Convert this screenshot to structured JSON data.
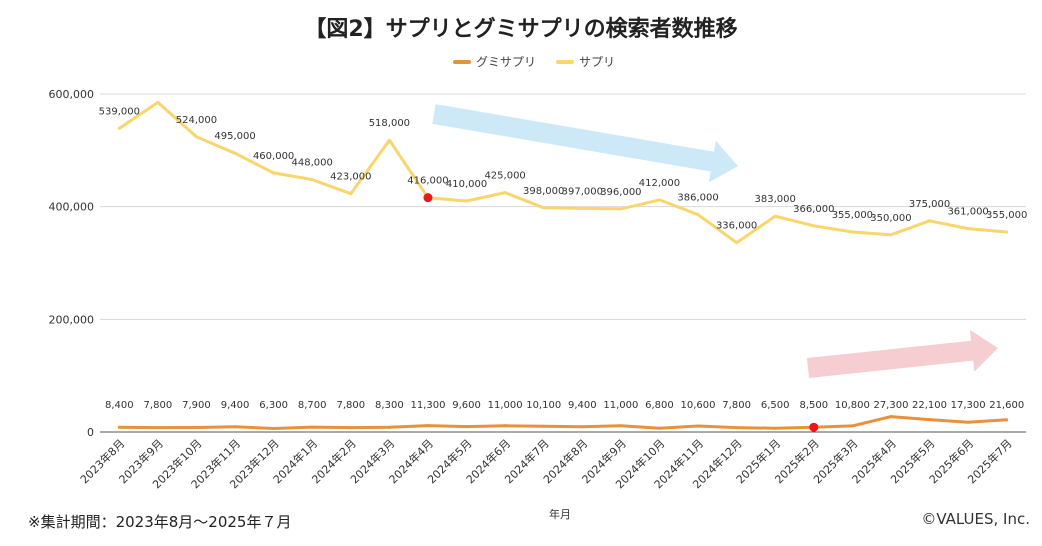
{
  "chart_data": {
    "type": "line",
    "title": "【図2】サプリとグミサプリの検索者数推移",
    "xlabel": "年月",
    "ylabel": "",
    "ylim": [
      0,
      600000
    ],
    "yticks": [
      "0",
      "200,000",
      "400,000",
      "600,000"
    ],
    "ytick_values": [
      0,
      200000,
      400000,
      600000
    ],
    "grid": true,
    "legend_position": "top-center",
    "categories": [
      "2023年8月",
      "2023年9月",
      "2023年10月",
      "2023年11月",
      "2023年12月",
      "2024年1月",
      "2024年2月",
      "2024年3月",
      "2024年4月",
      "2024年5月",
      "2024年6月",
      "2024年7月",
      "2024年8月",
      "2024年9月",
      "2024年10月",
      "2024年11月",
      "2024年12月",
      "2025年1月",
      "2025年2月",
      "2025年3月",
      "2025年4月",
      "2025年5月",
      "2025年6月",
      "2025年7月"
    ],
    "series": [
      {
        "name": "グミサプリ",
        "color": "#e8913a",
        "values": [
          8400,
          7800,
          7900,
          9400,
          6300,
          8700,
          7800,
          8300,
          11300,
          9600,
          11000,
          10100,
          9400,
          11000,
          6800,
          10600,
          7800,
          6500,
          8500,
          10800,
          27300,
          22100,
          17300,
          21600
        ],
        "labels": [
          "8,400",
          "7,800",
          "7,900",
          "9,400",
          "6,300",
          "8,700",
          "7,800",
          "8,300",
          "11,300",
          "9,600",
          "11,000",
          "10,100",
          "9,400",
          "11,000",
          "6,800",
          "10,600",
          "7,800",
          "6,500",
          "8,500",
          "10,800",
          "27,300",
          "22,100",
          "17,300",
          "21,600"
        ],
        "highlight_index": 18
      },
      {
        "name": "サプリ",
        "color": "#f8d66b",
        "values": [
          539000,
          585000,
          524000,
          495000,
          460000,
          448000,
          423000,
          518000,
          416000,
          410000,
          425000,
          398000,
          397000,
          396000,
          412000,
          386000,
          336000,
          383000,
          366000,
          355000,
          350000,
          375000,
          361000,
          355000
        ],
        "labels": [
          "539,000",
          "",
          "524,000",
          "495,000",
          "460,000",
          "448,000",
          "423,000",
          "518,000",
          "416,000",
          "410,000",
          "425,000",
          "398,000",
          "397,000",
          "396,000",
          "412,000",
          "386,000",
          "336,000",
          "383,000",
          "366,000",
          "355,000",
          "350,000",
          "375,000",
          "361,000",
          "355,000"
        ],
        "highlight_index": 8
      }
    ],
    "annotations": [
      {
        "type": "trend-arrow",
        "direction": "down",
        "color": "#cde9f7"
      },
      {
        "type": "trend-arrow",
        "direction": "up",
        "color": "#f6cdd0"
      }
    ],
    "highlight_color": "#e8191b"
  },
  "footnote": "※集計期間：2023年8月～2025年７月",
  "copyright": "©VALUES, Inc."
}
